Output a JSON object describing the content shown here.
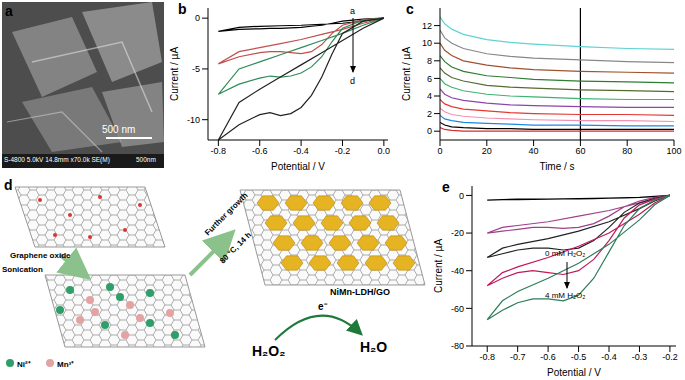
{
  "panel_labels": [
    "a",
    "b",
    "c",
    "d",
    "e"
  ],
  "image_a": {
    "scale_bar": "500 nm",
    "footer": "S-4800 5.0kV 14.8mm x70.0k SE(M)",
    "footer_scale": "500nm"
  },
  "scheme_d": {
    "start": "Graphene oxide",
    "step1": "Sonication",
    "step2": "Further growth",
    "condition": "80 °C, 14 h",
    "product": "NiMn-LDH/GO",
    "electron": "e⁻",
    "reactant": "H₂O₂",
    "result": "H₂O",
    "legend": [
      {
        "label": "Ni²⁺",
        "color": "#2f9e6a"
      },
      {
        "label": "Mn³⁺",
        "color": "#e3a3a3"
      }
    ]
  },
  "chart_data": [
    {
      "type": "line",
      "xlabel": "Potential / V",
      "ylabel": "Current / µA",
      "xlim": [
        -0.85,
        0.02
      ],
      "xticks": [
        -0.8,
        -0.6,
        -0.4,
        -0.2,
        {
          "value": 0,
          "label": "0.0"
        }
      ],
      "ylim": [
        -12,
        1
      ],
      "yticks": [
        -10,
        -5,
        0
      ],
      "annotations": [
        "a",
        "d"
      ],
      "x": [
        0,
        -0.1,
        -0.2,
        -0.25,
        -0.3,
        -0.35,
        -0.4,
        -0.45,
        -0.5,
        -0.55,
        -0.6,
        -0.7,
        -0.8,
        -0.7,
        -0.6,
        -0.5,
        -0.4,
        -0.3,
        -0.2,
        -0.1,
        0
      ],
      "series": [
        {
          "color": "#000000",
          "values": [
            0,
            -0.1,
            -0.3,
            -0.5,
            -0.7,
            -0.8,
            -0.9,
            -0.95,
            -1,
            -1,
            -1.05,
            -1.1,
            -1.3,
            -0.9,
            -0.8,
            -0.75,
            -0.7,
            -0.6,
            -0.5,
            -0.3,
            0
          ]
        },
        {
          "color": "#c0504d",
          "values": [
            0,
            -0.15,
            -0.7,
            -1.5,
            -2.6,
            -3.3,
            -3.5,
            -3.4,
            -3.3,
            -3.3,
            -3.4,
            -3.8,
            -4.5,
            -3.3,
            -2.9,
            -2.5,
            -2.1,
            -1.6,
            -1.1,
            -0.5,
            0
          ]
        },
        {
          "color": "#2e8b57",
          "values": [
            0,
            -0.2,
            -1,
            -2.3,
            -3.8,
            -4.8,
            -5.4,
            -5.7,
            -5.8,
            -5.7,
            -5.9,
            -6.5,
            -7.5,
            -5,
            -4.3,
            -3.6,
            -2.9,
            -2.2,
            -1.5,
            -0.7,
            0
          ]
        },
        {
          "color": "#222222",
          "values": [
            0,
            -0.3,
            -1.5,
            -3.5,
            -5.8,
            -7.6,
            -8.8,
            -9.4,
            -9.6,
            -9.3,
            -9.5,
            -10.5,
            -12,
            -8.3,
            -7,
            -5.8,
            -4.6,
            -3.4,
            -2.2,
            -1,
            0
          ]
        }
      ]
    },
    {
      "type": "line",
      "xlabel": "Time / s",
      "ylabel": "Current / µA",
      "xlim": [
        0,
        100
      ],
      "xticks": [
        0,
        20,
        40,
        60,
        80,
        100
      ],
      "ylim": [
        -1,
        14
      ],
      "yticks": [
        0,
        2,
        4,
        6,
        8,
        10,
        12
      ],
      "vline": 60,
      "x": [
        0,
        2,
        5,
        10,
        20,
        30,
        40,
        60,
        80,
        100
      ],
      "series": [
        {
          "color": "#5fd3d3",
          "values": [
            13,
            12.2,
            11.6,
            11,
            10.4,
            10.1,
            9.9,
            9.6,
            9.4,
            9.3
          ]
        },
        {
          "color": "#888888",
          "values": [
            11.5,
            10.6,
            10,
            9.4,
            8.8,
            8.5,
            8.3,
            8.1,
            7.9,
            7.8
          ]
        },
        {
          "color": "#a0522d",
          "values": [
            10,
            9.2,
            8.6,
            8,
            7.5,
            7.2,
            7,
            6.8,
            6.7,
            6.6
          ]
        },
        {
          "color": "#2e7d32",
          "values": [
            8.6,
            7.9,
            7.3,
            6.8,
            6.3,
            6.1,
            5.9,
            5.7,
            5.6,
            5.5
          ]
        },
        {
          "color": "#556b2f",
          "values": [
            7.2,
            6.6,
            6.1,
            5.7,
            5.2,
            5,
            4.9,
            4.7,
            4.6,
            4.5
          ]
        },
        {
          "color": "#3cb371",
          "values": [
            6,
            5.4,
            5,
            4.6,
            4.2,
            4,
            3.9,
            3.7,
            3.6,
            3.6
          ]
        },
        {
          "color": "#8e44ad",
          "values": [
            4.8,
            4.2,
            3.8,
            3.5,
            3.2,
            3,
            2.9,
            2.8,
            2.7,
            2.7
          ]
        },
        {
          "color": "#e53935",
          "values": [
            3.6,
            3.1,
            2.8,
            2.5,
            2.3,
            2.1,
            2,
            1.9,
            1.9,
            1.8
          ]
        },
        {
          "color": "#f48fb1",
          "values": [
            2.6,
            2.2,
            1.9,
            1.7,
            1.5,
            1.4,
            1.3,
            1.2,
            1.2,
            1.1
          ]
        },
        {
          "color": "#1e88e5",
          "values": [
            1.8,
            1.4,
            1.2,
            1,
            0.9,
            0.8,
            0.7,
            0.7,
            0.6,
            0.6
          ]
        },
        {
          "color": "#000000",
          "values": [
            1,
            0.7,
            0.5,
            0.4,
            0.3,
            0.3,
            0.2,
            0.2,
            0.2,
            0.2
          ]
        },
        {
          "color": "#d32f2f",
          "values": [
            0.4,
            0.2,
            0.1,
            0,
            0,
            0,
            0,
            0,
            0,
            0
          ]
        }
      ]
    },
    {
      "type": "line",
      "xlabel": "Potential / V",
      "ylabel": "Current / µA",
      "xlim": [
        -0.85,
        -0.18
      ],
      "xticks": [
        -0.8,
        -0.7,
        -0.6,
        -0.5,
        -0.4,
        -0.3,
        -0.2
      ],
      "ylim": [
        -80,
        5
      ],
      "yticks": [
        -80,
        -60,
        -40,
        -20,
        0
      ],
      "annotations": [
        "0 mM H₂O₂",
        "4 mM H₂O₂"
      ],
      "x": [
        -0.2,
        -0.25,
        -0.3,
        -0.35,
        -0.4,
        -0.45,
        -0.5,
        -0.55,
        -0.6,
        -0.65,
        -0.7,
        -0.75,
        -0.8,
        -0.75,
        -0.7,
        -0.6,
        -0.5,
        -0.4,
        -0.3,
        -0.25,
        -0.2
      ],
      "series": [
        {
          "color": "#000000",
          "values": [
            0,
            -0.5,
            -1,
            -1.3,
            -1.5,
            -1.7,
            -1.8,
            -1.9,
            -2,
            -2.1,
            -2.2,
            -2.3,
            -2.5,
            -2.2,
            -2,
            -1.9,
            -1.7,
            -1.4,
            -1,
            -0.6,
            0
          ]
        },
        {
          "color": "#a0408a",
          "values": [
            0,
            -1,
            -3,
            -6,
            -11,
            -15,
            -17,
            -17.5,
            -17,
            -17,
            -18,
            -19,
            -20,
            -17,
            -16,
            -14,
            -11,
            -8,
            -4,
            -2,
            0
          ]
        },
        {
          "color": "#222222",
          "values": [
            0,
            -1.5,
            -4,
            -9,
            -17,
            -24,
            -28,
            -29,
            -28,
            -28,
            -29,
            -31,
            -33,
            -28,
            -26,
            -23,
            -19,
            -14,
            -7,
            -3,
            0
          ]
        },
        {
          "color": "#c2185b",
          "values": [
            0,
            -2,
            -5,
            -12,
            -24,
            -34,
            -40,
            -42,
            -41,
            -40,
            -41,
            -44,
            -48,
            -41,
            -38,
            -33,
            -27,
            -20,
            -10,
            -4,
            0
          ]
        },
        {
          "color": "#2e7d5a",
          "values": [
            0,
            -2.5,
            -7,
            -16,
            -30,
            -44,
            -53,
            -56,
            -55,
            -55,
            -57,
            -61,
            -66,
            -56,
            -51,
            -44,
            -36,
            -26,
            -13,
            -5,
            0
          ]
        }
      ]
    }
  ]
}
